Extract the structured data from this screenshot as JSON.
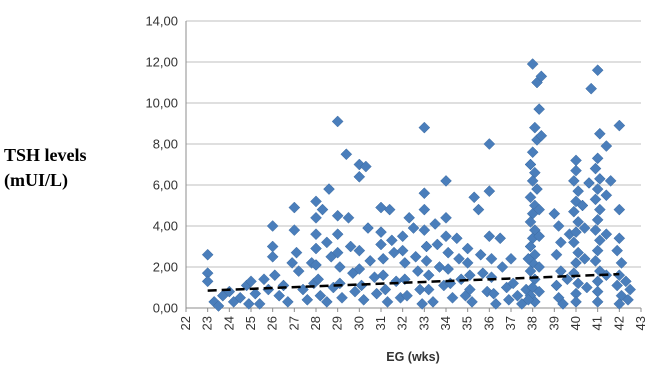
{
  "chart_data": {
    "type": "scatter",
    "title": "",
    "xlabel": "EG (wks)",
    "ylabel_lines": [
      "TSH levels",
      "(mUI/L)"
    ],
    "xlim": [
      22,
      43
    ],
    "ylim": [
      0,
      14
    ],
    "x_ticks": [
      "22",
      "23",
      "24",
      "25",
      "26",
      "27",
      "28",
      "29",
      "30",
      "31",
      "32",
      "33",
      "34",
      "35",
      "36",
      "37",
      "38",
      "39",
      "40",
      "41",
      "42",
      "43"
    ],
    "y_ticks": [
      "0,00",
      "2,00",
      "4,00",
      "6,00",
      "8,00",
      "10,00",
      "12,00",
      "14,00"
    ],
    "grid": true,
    "legend": "none",
    "colors": {
      "marker": "#4a7ebb",
      "trend": "#000000",
      "grid": "#bfbfbf"
    },
    "trendline": {
      "style": "dashed",
      "x": [
        23,
        42
      ],
      "y": [
        0.85,
        1.65
      ]
    },
    "series": [
      {
        "marker": "diamond",
        "points": [
          [
            23,
            2.6
          ],
          [
            23,
            1.7
          ],
          [
            23,
            1.3
          ],
          [
            23.3,
            0.3
          ],
          [
            23.5,
            0.1
          ],
          [
            23.7,
            0.6
          ],
          [
            24,
            0.8
          ],
          [
            24.2,
            0.3
          ],
          [
            24.5,
            0.5
          ],
          [
            24.8,
            1.1
          ],
          [
            24.9,
            0.2
          ],
          [
            25,
            1.3
          ],
          [
            25.2,
            0.7
          ],
          [
            25.4,
            0.2
          ],
          [
            25.6,
            1.4
          ],
          [
            25.8,
            0.9
          ],
          [
            26,
            2.5
          ],
          [
            26,
            3.0
          ],
          [
            26,
            4.0
          ],
          [
            26.1,
            1.6
          ],
          [
            26.3,
            0.6
          ],
          [
            26.5,
            1.1
          ],
          [
            26.7,
            0.3
          ],
          [
            26.9,
            2.2
          ],
          [
            27,
            4.9
          ],
          [
            27,
            3.8
          ],
          [
            27.1,
            2.7
          ],
          [
            27.2,
            1.8
          ],
          [
            27.4,
            0.9
          ],
          [
            27.6,
            0.4
          ],
          [
            27.8,
            2.2
          ],
          [
            27.9,
            1.2
          ],
          [
            28,
            5.2
          ],
          [
            28,
            4.4
          ],
          [
            28,
            3.6
          ],
          [
            28,
            2.9
          ],
          [
            28,
            2.1
          ],
          [
            28.1,
            1.4
          ],
          [
            28.2,
            0.6
          ],
          [
            28.3,
            4.8
          ],
          [
            28.5,
            3.2
          ],
          [
            28.5,
            0.3
          ],
          [
            28.6,
            5.8
          ],
          [
            28.7,
            2.5
          ],
          [
            28.8,
            1.0
          ],
          [
            29,
            9.1
          ],
          [
            29,
            4.5
          ],
          [
            29,
            3.6
          ],
          [
            29,
            2.7
          ],
          [
            29.1,
            2.0
          ],
          [
            29.1,
            1.2
          ],
          [
            29.2,
            0.5
          ],
          [
            29.4,
            7.5
          ],
          [
            29.5,
            4.4
          ],
          [
            29.6,
            3.0
          ],
          [
            29.7,
            1.7
          ],
          [
            29.8,
            0.8
          ],
          [
            30,
            6.4
          ],
          [
            30,
            7.0
          ],
          [
            30,
            2.8
          ],
          [
            30,
            1.9
          ],
          [
            30.1,
            1.1
          ],
          [
            30.2,
            0.4
          ],
          [
            30.3,
            6.9
          ],
          [
            30.4,
            3.9
          ],
          [
            30.5,
            2.3
          ],
          [
            30.7,
            1.5
          ],
          [
            30.8,
            0.7
          ],
          [
            31,
            4.9
          ],
          [
            31,
            3.7
          ],
          [
            31,
            3.1
          ],
          [
            31.1,
            2.4
          ],
          [
            31.1,
            1.6
          ],
          [
            31.2,
            0.9
          ],
          [
            31.3,
            0.3
          ],
          [
            31.4,
            4.8
          ],
          [
            31.5,
            3.3
          ],
          [
            31.6,
            2.7
          ],
          [
            31.7,
            1.3
          ],
          [
            31.9,
            0.5
          ],
          [
            32,
            3.5
          ],
          [
            32,
            2.8
          ],
          [
            32.1,
            2.2
          ],
          [
            32.1,
            1.4
          ],
          [
            32.2,
            0.6
          ],
          [
            32.3,
            4.4
          ],
          [
            32.5,
            3.9
          ],
          [
            32.6,
            2.5
          ],
          [
            32.7,
            1.8
          ],
          [
            32.8,
            0.9
          ],
          [
            32.9,
            0.2
          ],
          [
            33,
            8.8
          ],
          [
            33,
            5.6
          ],
          [
            33,
            4.8
          ],
          [
            33,
            3.8
          ],
          [
            33.1,
            3.0
          ],
          [
            33.1,
            2.3
          ],
          [
            33.2,
            1.6
          ],
          [
            33.2,
            0.9
          ],
          [
            33.4,
            0.3
          ],
          [
            33.5,
            4.1
          ],
          [
            33.6,
            3.1
          ],
          [
            33.7,
            2.0
          ],
          [
            33.9,
            1.1
          ],
          [
            34,
            6.2
          ],
          [
            34,
            4.4
          ],
          [
            34,
            3.5
          ],
          [
            34.1,
            2.7
          ],
          [
            34.1,
            1.9
          ],
          [
            34.2,
            1.2
          ],
          [
            34.3,
            0.5
          ],
          [
            34.5,
            3.4
          ],
          [
            34.6,
            2.4
          ],
          [
            34.7,
            1.4
          ],
          [
            34.9,
            0.6
          ],
          [
            35,
            2.9
          ],
          [
            35,
            2.2
          ],
          [
            35.1,
            1.6
          ],
          [
            35.1,
            0.9
          ],
          [
            35.2,
            0.3
          ],
          [
            35.3,
            5.4
          ],
          [
            35.5,
            4.8
          ],
          [
            35.6,
            2.6
          ],
          [
            35.7,
            1.7
          ],
          [
            35.9,
            0.8
          ],
          [
            36,
            8.0
          ],
          [
            36,
            5.7
          ],
          [
            36,
            3.5
          ],
          [
            36.1,
            2.4
          ],
          [
            36.1,
            1.5
          ],
          [
            36.2,
            0.7
          ],
          [
            36.3,
            0.2
          ],
          [
            36.5,
            3.4
          ],
          [
            36.6,
            2.0
          ],
          [
            36.8,
            1.0
          ],
          [
            36.9,
            0.4
          ],
          [
            37,
            2.4
          ],
          [
            37.1,
            1.2
          ],
          [
            37.3,
            0.6
          ],
          [
            37.5,
            0.2
          ],
          [
            37.7,
            0.9
          ],
          [
            38,
            11.9
          ],
          [
            38.2,
            11.0
          ],
          [
            38.4,
            11.3
          ],
          [
            38.3,
            9.7
          ],
          [
            38.1,
            8.8
          ],
          [
            38.2,
            8.2
          ],
          [
            38.4,
            8.4
          ],
          [
            38,
            7.6
          ],
          [
            37.9,
            7.0
          ],
          [
            38.1,
            6.6
          ],
          [
            38,
            6.2
          ],
          [
            38.2,
            5.8
          ],
          [
            37.9,
            5.4
          ],
          [
            38.1,
            5.0
          ],
          [
            38,
            4.6
          ],
          [
            37.9,
            4.2
          ],
          [
            38.1,
            3.8
          ],
          [
            38,
            3.4
          ],
          [
            37.9,
            3.0
          ],
          [
            38.1,
            2.6
          ],
          [
            38,
            2.2
          ],
          [
            37.9,
            1.8
          ],
          [
            38.1,
            1.4
          ],
          [
            38,
            1.0
          ],
          [
            37.9,
            0.6
          ],
          [
            38.1,
            0.3
          ],
          [
            38.3,
            4.8
          ],
          [
            38.3,
            3.5
          ],
          [
            38.3,
            2.0
          ],
          [
            38.3,
            0.8
          ],
          [
            37.8,
            0.4
          ],
          [
            37.8,
            2.4
          ],
          [
            39,
            4.6
          ],
          [
            39.2,
            4.0
          ],
          [
            39.3,
            3.2
          ],
          [
            39.1,
            2.6
          ],
          [
            39.3,
            1.8
          ],
          [
            39.1,
            1.1
          ],
          [
            39.2,
            0.5
          ],
          [
            39.4,
            0.2
          ],
          [
            39.6,
            1.4
          ],
          [
            39.7,
            3.6
          ],
          [
            40,
            7.2
          ],
          [
            40,
            6.7
          ],
          [
            39.9,
            6.2
          ],
          [
            40.1,
            5.7
          ],
          [
            40,
            5.2
          ],
          [
            39.9,
            4.7
          ],
          [
            40.1,
            4.2
          ],
          [
            40,
            3.7
          ],
          [
            39.9,
            3.2
          ],
          [
            40.1,
            2.7
          ],
          [
            40,
            2.2
          ],
          [
            39.9,
            1.7
          ],
          [
            40.1,
            1.2
          ],
          [
            40,
            0.7
          ],
          [
            40,
            0.3
          ],
          [
            40.3,
            5.0
          ],
          [
            40.4,
            3.9
          ],
          [
            40.4,
            2.4
          ],
          [
            40.5,
            1.0
          ],
          [
            40.6,
            6.1
          ],
          [
            40.7,
            10.7
          ],
          [
            41,
            11.6
          ],
          [
            41.1,
            8.5
          ],
          [
            41,
            7.3
          ],
          [
            40.9,
            6.8
          ],
          [
            41.1,
            6.3
          ],
          [
            41,
            5.8
          ],
          [
            40.9,
            5.3
          ],
          [
            41.1,
            4.8
          ],
          [
            41,
            4.3
          ],
          [
            40.9,
            3.8
          ],
          [
            41.1,
            3.3
          ],
          [
            41,
            2.8
          ],
          [
            40.9,
            2.3
          ],
          [
            41.1,
            1.8
          ],
          [
            41,
            1.3
          ],
          [
            41,
            0.8
          ],
          [
            41,
            0.3
          ],
          [
            41.4,
            7.9
          ],
          [
            41.4,
            5.5
          ],
          [
            41.4,
            3.6
          ],
          [
            41.4,
            1.6
          ],
          [
            41.6,
            6.2
          ],
          [
            42,
            8.9
          ],
          [
            42,
            4.8
          ],
          [
            42,
            3.4
          ],
          [
            41.9,
            2.8
          ],
          [
            42.1,
            2.2
          ],
          [
            42,
            1.6
          ],
          [
            41.9,
            1.1
          ],
          [
            42.1,
            0.6
          ],
          [
            42,
            0.2
          ],
          [
            42.3,
            1.3
          ],
          [
            42.5,
            0.9
          ],
          [
            42.4,
            0.4
          ]
        ]
      }
    ]
  }
}
